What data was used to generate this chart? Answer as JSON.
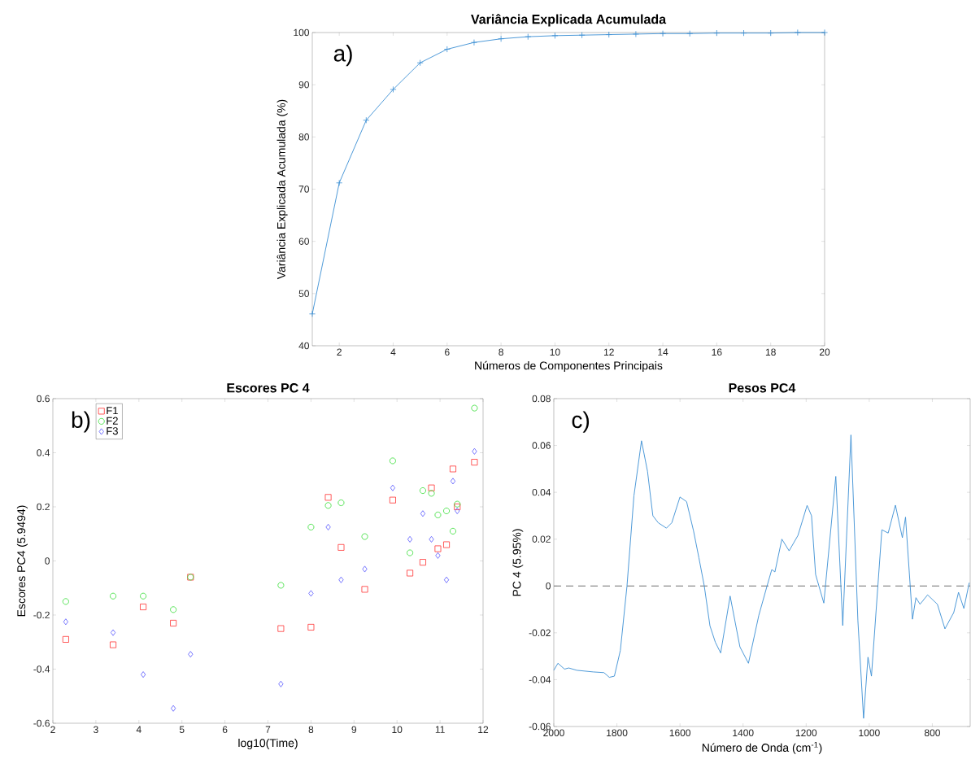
{
  "chart_data": [
    {
      "type": "line",
      "title": "Variância Explicada Acumulada",
      "xlabel": "Números de Componentes Principais",
      "ylabel": "Variância Explicada Acumulada (%)",
      "x": [
        1,
        2,
        3,
        4,
        5,
        6,
        7,
        8,
        9,
        10,
        11,
        12,
        13,
        14,
        15,
        16,
        17,
        18,
        19,
        20
      ],
      "series": [
        {
          "color": "#3b8fd4",
          "values": [
            46.1,
            71.2,
            83.2,
            89.1,
            94.2,
            96.8,
            98.1,
            98.8,
            99.2,
            99.4,
            99.5,
            99.6,
            99.7,
            99.8,
            99.8,
            99.9,
            99.9,
            99.9,
            100,
            100
          ]
        }
      ],
      "xlim": [
        1,
        20
      ],
      "ylim": [
        40,
        100
      ],
      "xticks": [
        2,
        4,
        6,
        8,
        10,
        12,
        14,
        16,
        18,
        20
      ],
      "yticks": [
        40,
        50,
        60,
        70,
        80,
        90,
        100
      ],
      "marker": "cross",
      "line_style": "solid",
      "annotations": [
        "a)"
      ]
    },
    {
      "type": "scatter",
      "title": "Escores PC 4",
      "xlabel": "log10(Time)",
      "ylabel": "Escores PC4 (5.9494)",
      "x": [
        2.3,
        3.4,
        4.1,
        4.8,
        5.2,
        7.3,
        8.0,
        8.4,
        8.7,
        9.25,
        9.9,
        10.3,
        10.6,
        10.8,
        10.95,
        11.15,
        11.3,
        11.4,
        11.8
      ],
      "series": [
        {
          "name": "F1",
          "color": "#ff3333",
          "marker": "square",
          "values": [
            -0.29,
            -0.31,
            -0.17,
            -0.23,
            -0.06,
            -0.25,
            -0.245,
            0.235,
            0.05,
            -0.105,
            0.225,
            -0.045,
            -0.005,
            0.27,
            0.045,
            0.06,
            0.34,
            0.2,
            0.365
          ]
        },
        {
          "name": "F2",
          "color": "#33dd33",
          "marker": "circle",
          "values": [
            -0.15,
            -0.13,
            -0.13,
            -0.18,
            -0.06,
            -0.09,
            0.125,
            0.205,
            0.215,
            0.09,
            0.37,
            0.03,
            0.26,
            0.25,
            0.17,
            0.185,
            0.11,
            0.21,
            0.565
          ]
        },
        {
          "name": "F3",
          "color": "#5555ff",
          "marker": "diamond",
          "values": [
            -0.225,
            -0.265,
            -0.42,
            -0.545,
            -0.345,
            -0.455,
            -0.12,
            0.125,
            -0.07,
            -0.03,
            0.27,
            0.08,
            0.175,
            0.08,
            0.02,
            -0.07,
            0.295,
            0.185,
            0.405
          ]
        }
      ],
      "xlim": [
        2,
        12
      ],
      "ylim": [
        -0.6,
        0.6
      ],
      "xticks": [
        2,
        3,
        4,
        5,
        6,
        7,
        8,
        9,
        10,
        11,
        12
      ],
      "yticks": [
        -0.6,
        -0.4,
        -0.2,
        0,
        0.2,
        0.4,
        0.6
      ],
      "legend": "top left",
      "annotations": [
        "b)"
      ]
    },
    {
      "type": "line",
      "title": "Pesos PC4",
      "xlabel": "Número de Onda (cm$^{-1}$)",
      "ylabel": "PC 4 (5.95%)",
      "x": [
        2000,
        1987,
        1966,
        1953,
        1927,
        1875,
        1841,
        1824,
        1808,
        1789,
        1768,
        1746,
        1722,
        1703,
        1686,
        1669,
        1643,
        1626,
        1600,
        1579,
        1557,
        1540,
        1523,
        1505,
        1488,
        1471,
        1441,
        1410,
        1383,
        1350,
        1324,
        1309,
        1299,
        1277,
        1254,
        1226,
        1197,
        1183,
        1170,
        1144,
        1106,
        1084,
        1058,
        1036,
        1018,
        1004,
        993,
        960,
        940,
        917,
        895,
        885,
        863,
        852,
        839,
        815,
        784,
        760,
        732,
        717,
        700,
        683
      ],
      "series": [
        {
          "color": "#3b8fd4",
          "values": [
            -0.036,
            -0.033,
            -0.0355,
            -0.035,
            -0.036,
            -0.0367,
            -0.037,
            -0.039,
            -0.0385,
            -0.0275,
            0,
            0.0385,
            0.062,
            0.049,
            0.03,
            0.027,
            0.0247,
            0.027,
            0.038,
            0.036,
            0.0235,
            0.012,
            0,
            -0.017,
            -0.024,
            -0.0286,
            -0.0043,
            -0.026,
            -0.033,
            -0.0125,
            0,
            0.007,
            0.006,
            0.02,
            0.015,
            0.0216,
            0.0344,
            0.03,
            0.0049,
            -0.0073,
            0.0468,
            -0.0169,
            0.0645,
            -0.0148,
            -0.0565,
            -0.0304,
            -0.0385,
            0.024,
            0.0226,
            0.0345,
            0.0206,
            0.0294,
            -0.0142,
            -0.005,
            -0.0078,
            -0.0038,
            -0.0078,
            -0.0183,
            -0.0113,
            -0.0027,
            -0.0096,
            0.0014
          ]
        }
      ],
      "xlim": [
        2000,
        680
      ],
      "ylim": [
        -0.06,
        0.08
      ],
      "xticks": [
        2000,
        1800,
        1600,
        1400,
        1200,
        1000,
        800
      ],
      "yticks": [
        -0.06,
        -0.04,
        -0.02,
        0,
        0.02,
        0.04,
        0.06,
        0.08
      ],
      "ref_lines": [
        {
          "axis": "y",
          "value": 0,
          "color": "#707070",
          "line_style": "dashed"
        }
      ],
      "annotations": [
        "c)"
      ]
    }
  ]
}
